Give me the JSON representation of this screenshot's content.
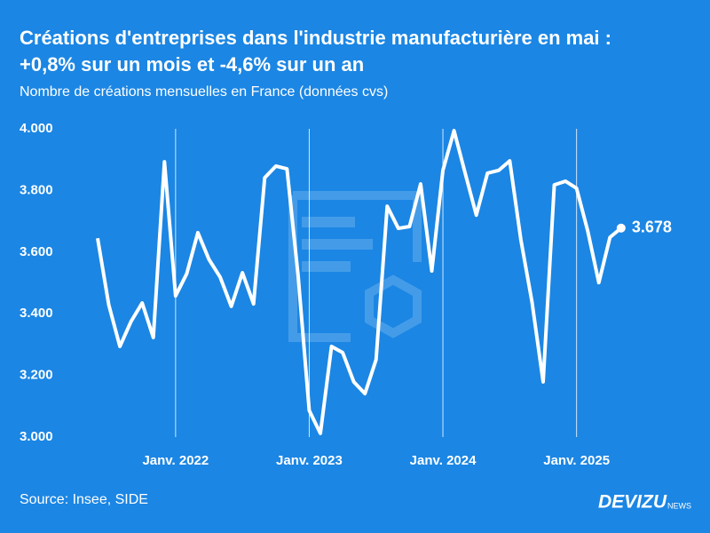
{
  "chart_data": {
    "type": "line",
    "title": "Créations d'entreprises dans l'industrie manufacturière en mai :",
    "title_line2": "+0,8% sur un mois et -4,6% sur un an",
    "subtitle": "Nombre de créations mensuelles en France (données cvs)",
    "source": "Source: Insee, SIDE",
    "logo": "DEVIZU",
    "logo_suffix": "NEWS",
    "categories": [
      null,
      null,
      null,
      null,
      null,
      null,
      null,
      "Janv. 2022",
      null,
      null,
      null,
      null,
      null,
      null,
      null,
      null,
      null,
      null,
      null,
      "Janv. 2023",
      null,
      null,
      null,
      null,
      null,
      null,
      null,
      null,
      null,
      null,
      null,
      "Janv. 2024",
      null,
      null,
      null,
      null,
      null,
      null,
      null,
      null,
      null,
      null,
      null,
      "Janv. 2025",
      null,
      null,
      null,
      null
    ],
    "series": [
      {
        "color": "#ffffff",
        "values": [
          3645,
          3429,
          3294,
          3375,
          3435,
          3323,
          3893,
          3458,
          3530,
          3663,
          3576,
          3519,
          3424,
          3533,
          3432,
          3841,
          3879,
          3870,
          3524,
          3086,
          3012,
          3294,
          3274,
          3179,
          3141,
          3251,
          3749,
          3677,
          3683,
          3821,
          3539,
          3865,
          3994,
          3856,
          3720,
          3856,
          3865,
          3896,
          3640,
          3438,
          3179,
          3818,
          3830,
          3807,
          3669,
          3501,
          3648,
          3678
        ],
        "value_labels": [
          null,
          null,
          null,
          null,
          null,
          null,
          null,
          null,
          null,
          null,
          null,
          null,
          null,
          null,
          null,
          null,
          null,
          null,
          null,
          null,
          null,
          null,
          null,
          null,
          null,
          null,
          null,
          null,
          null,
          null,
          null,
          null,
          null,
          null,
          null,
          null,
          null,
          null,
          null,
          null,
          null,
          null,
          null,
          null,
          null,
          null,
          null,
          "3.678"
        ]
      }
    ],
    "ylim": [
      3000,
      4000
    ],
    "yticks": [
      {
        "value": 3000,
        "label": "3.000"
      },
      {
        "value": 3200,
        "label": "3.200"
      },
      {
        "value": 3400,
        "label": "3.400"
      },
      {
        "value": 3600,
        "label": "3.600"
      },
      {
        "value": 3800,
        "label": "3.800"
      },
      {
        "value": 4000,
        "label": "4.000"
      }
    ],
    "grid": true
  }
}
